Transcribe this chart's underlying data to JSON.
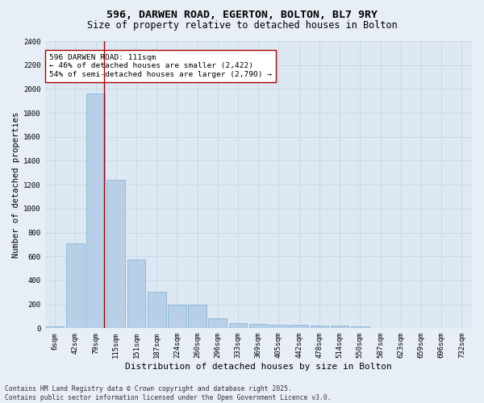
{
  "title_line1": "596, DARWEN ROAD, EGERTON, BOLTON, BL7 9RY",
  "title_line2": "Size of property relative to detached houses in Bolton",
  "xlabel": "Distribution of detached houses by size in Bolton",
  "ylabel": "Number of detached properties",
  "categories": [
    "6sqm",
    "42sqm",
    "79sqm",
    "115sqm",
    "151sqm",
    "187sqm",
    "224sqm",
    "260sqm",
    "296sqm",
    "333sqm",
    "369sqm",
    "405sqm",
    "442sqm",
    "478sqm",
    "514sqm",
    "550sqm",
    "587sqm",
    "623sqm",
    "659sqm",
    "696sqm",
    "732sqm"
  ],
  "values": [
    15,
    710,
    1960,
    1240,
    575,
    305,
    200,
    200,
    80,
    45,
    35,
    30,
    30,
    20,
    20,
    15,
    5,
    3,
    2,
    1,
    1
  ],
  "bar_color": "#b8cfe8",
  "bar_edge_color": "#7aafd4",
  "grid_color": "#c5d5e5",
  "background_color": "#dde8f2",
  "vline_color": "#aa0000",
  "annotation_text": "596 DARWEN ROAD: 111sqm\n← 46% of detached houses are smaller (2,422)\n54% of semi-detached houses are larger (2,790) →",
  "annotation_box_color": "#ffffff",
  "annotation_box_edge": "#aa0000",
  "ylim": [
    0,
    2400
  ],
  "yticks": [
    0,
    200,
    400,
    600,
    800,
    1000,
    1200,
    1400,
    1600,
    1800,
    2000,
    2200,
    2400
  ],
  "footer_text": "Contains HM Land Registry data © Crown copyright and database right 2025.\nContains public sector information licensed under the Open Government Licence v3.0.",
  "title_fontsize": 9.5,
  "subtitle_fontsize": 8.5,
  "xlabel_fontsize": 8,
  "ylabel_fontsize": 7.5,
  "tick_fontsize": 6.5,
  "annotation_fontsize": 6.8,
  "footer_fontsize": 5.8
}
